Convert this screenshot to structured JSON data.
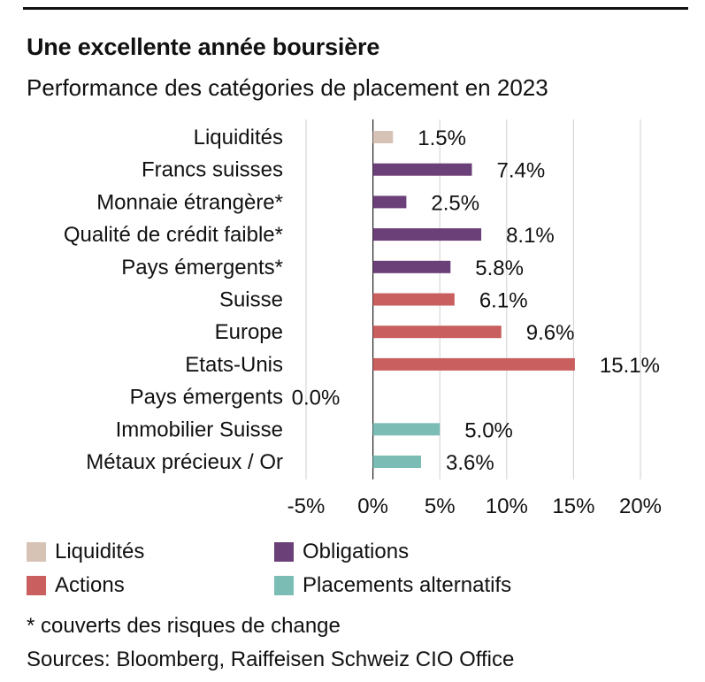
{
  "title": "Une excellente année boursière",
  "subtitle": "Performance des catégories de placement en 2023",
  "chart_data": {
    "type": "bar",
    "orientation": "horizontal",
    "categories": [
      "Liquidités",
      "Francs suisses",
      "Monnaie étrangère*",
      "Qualité de crédit faible*",
      "Pays émergents*",
      "Suisse",
      "Europe",
      "Etats-Unis",
      "Pays émergents",
      "Immobilier Suisse",
      "Métaux précieux / Or"
    ],
    "values": [
      1.5,
      7.4,
      2.5,
      8.1,
      5.8,
      6.1,
      9.6,
      15.1,
      0.0,
      5.0,
      3.6
    ],
    "value_labels": [
      "1.5%",
      "7.4%",
      "2.5%",
      "8.1%",
      "5.8%",
      "6.1%",
      "9.6%",
      "15.1%",
      "0.0%",
      "5.0%",
      "3.6%"
    ],
    "groups": [
      "Liquidités",
      "Obligations",
      "Obligations",
      "Obligations",
      "Obligations",
      "Actions",
      "Actions",
      "Actions",
      "Actions",
      "Placements alternatifs",
      "Placements alternatifs"
    ],
    "xlim": [
      -5,
      20
    ],
    "xticks": [
      -5,
      0,
      5,
      10,
      15,
      20
    ],
    "xtick_labels": [
      "-5%",
      "0%",
      "5%",
      "10%",
      "15%",
      "20%"
    ],
    "grid": "vertical",
    "legend_placement": "bottom"
  },
  "legend": [
    {
      "label": "Liquidités",
      "color": "#d6c3b5"
    },
    {
      "label": "Obligations",
      "color": "#6b3f78"
    },
    {
      "label": "Actions",
      "color": "#c95f5f"
    },
    {
      "label": "Placements alternatifs",
      "color": "#7bbdb5"
    }
  ],
  "note": "* couverts des risques de change",
  "source": "Sources: Bloomberg, Raiffeisen Schweiz CIO Office"
}
